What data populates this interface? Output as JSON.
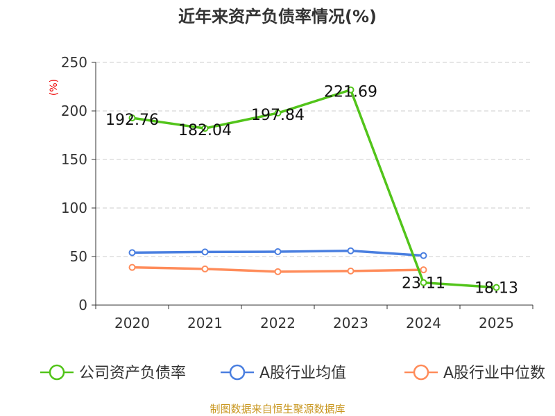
{
  "chart_data": {
    "type": "line",
    "title": "近年来资产负债率情况(%)",
    "ylabel": "(%)",
    "ylim": [
      0,
      250
    ],
    "yticks": [
      0,
      50,
      100,
      150,
      200,
      250
    ],
    "grid": true,
    "categories": [
      "2020",
      "2021",
      "2022",
      "2023",
      "2024",
      "2025"
    ],
    "legend_position": "bottom",
    "series": [
      {
        "name": "公司资产负债率",
        "color": "#52c41a",
        "values": [
          192.76,
          182.04,
          197.84,
          221.69,
          23.11,
          18.13
        ],
        "labels": [
          "192.76",
          "182.04",
          "197.84",
          "221.69",
          "23.11",
          "18.13"
        ]
      },
      {
        "name": "A股行业均值",
        "color": "#4a7fe0",
        "values": [
          54.0,
          54.7,
          55.0,
          55.9,
          51.0,
          null
        ]
      },
      {
        "name": "A股行业中位数",
        "color": "#ff8c5a",
        "values": [
          38.8,
          37.2,
          34.4,
          35.1,
          36.3,
          null
        ]
      }
    ],
    "source": "制图数据来自恒生聚源数据库"
  }
}
